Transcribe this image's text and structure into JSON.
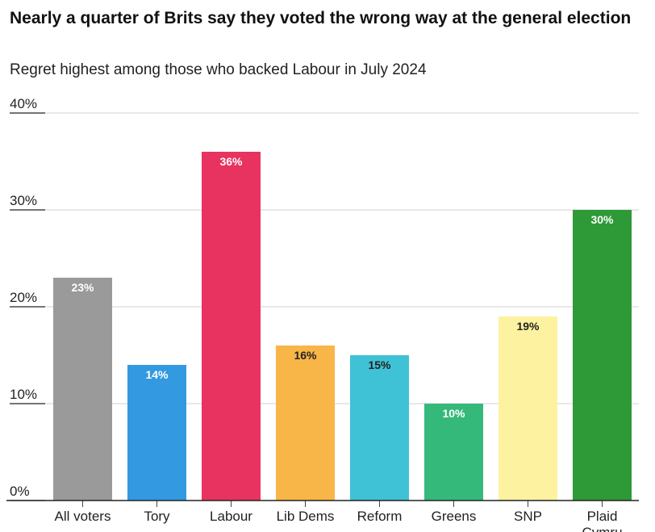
{
  "chart_data": {
    "type": "bar",
    "title": "Nearly a quarter of Brits say they voted the wrong way at the general election",
    "subtitle": "Regret highest among those who backed Labour in July 2024",
    "categories": [
      "All voters",
      "Tory",
      "Labour",
      "Lib Dems",
      "Reform",
      "Greens",
      "SNP",
      "Plaid Cymru"
    ],
    "values": [
      23,
      14,
      36,
      16,
      15,
      10,
      19,
      30
    ],
    "data_labels": [
      "23%",
      "14%",
      "36%",
      "16%",
      "15%",
      "10%",
      "19%",
      "30%"
    ],
    "colors": [
      "#9a9a9a",
      "#3399e0",
      "#e8325f",
      "#f8b548",
      "#3fc2d6",
      "#35b97a",
      "#fdf2a0",
      "#2e9a37"
    ],
    "label_colors": [
      "#ffffff",
      "#ffffff",
      "#ffffff",
      "#222222",
      "#222222",
      "#ffffff",
      "#222222",
      "#ffffff"
    ],
    "yticks": [
      0,
      10,
      20,
      30,
      40
    ],
    "ytick_labels": [
      "0%",
      "10%",
      "20%",
      "30%",
      "40%"
    ],
    "ylim": [
      0,
      40
    ],
    "grid": true,
    "xlabel": "",
    "ylabel": ""
  }
}
